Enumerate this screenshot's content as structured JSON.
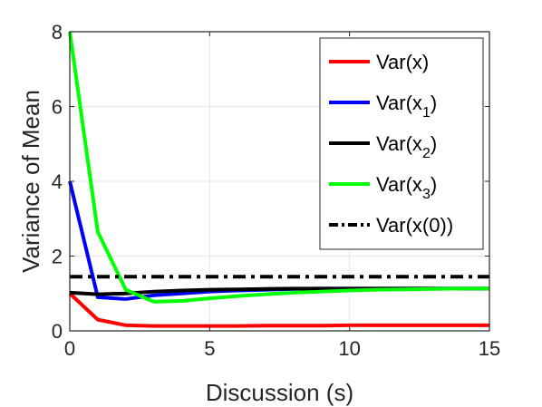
{
  "chart_data": {
    "type": "line",
    "xlabel": "Discussion (s)",
    "ylabel": "Variance of Mean",
    "xlim": [
      0,
      15
    ],
    "ylim": [
      0,
      8
    ],
    "x_ticks": [
      0,
      5,
      10,
      15
    ],
    "y_ticks": [
      0,
      2,
      4,
      6,
      8
    ],
    "x_tick_labels": [
      "0",
      "5",
      "10",
      "15"
    ],
    "y_tick_labels": [
      "0",
      "2",
      "4",
      "6",
      "8"
    ],
    "grid": true,
    "legend_position": "top-right",
    "series": [
      {
        "name": "Var(x)",
        "legend_main": "Var(x)",
        "legend_sub": "",
        "legend_tail": "",
        "color": "#ff0000",
        "dash": "solid",
        "x": [
          0,
          1,
          2,
          3,
          4,
          5,
          6,
          7,
          8,
          9,
          10,
          11,
          12,
          13,
          14,
          15
        ],
        "y": [
          1.0,
          0.3,
          0.15,
          0.13,
          0.13,
          0.13,
          0.13,
          0.14,
          0.14,
          0.14,
          0.15,
          0.15,
          0.15,
          0.15,
          0.15,
          0.15
        ]
      },
      {
        "name": "Var(x1)",
        "legend_main": "Var(x",
        "legend_sub": "1",
        "legend_tail": ")",
        "color": "#0000ff",
        "dash": "solid",
        "x": [
          0,
          1,
          2,
          3,
          4,
          5,
          6,
          7,
          8,
          9,
          10,
          11,
          12,
          13,
          14,
          15
        ],
        "y": [
          4.0,
          0.9,
          0.85,
          0.95,
          1.0,
          1.05,
          1.08,
          1.1,
          1.12,
          1.13,
          1.13,
          1.13,
          1.13,
          1.13,
          1.13,
          1.13
        ]
      },
      {
        "name": "Var(x2)",
        "legend_main": "Var(x",
        "legend_sub": "2",
        "legend_tail": ")",
        "color": "#000000",
        "dash": "solid",
        "x": [
          0,
          1,
          2,
          3,
          4,
          5,
          6,
          7,
          8,
          9,
          10,
          11,
          12,
          13,
          14,
          15
        ],
        "y": [
          1.02,
          0.98,
          1.0,
          1.05,
          1.08,
          1.1,
          1.11,
          1.12,
          1.13,
          1.13,
          1.13,
          1.13,
          1.13,
          1.13,
          1.13,
          1.13
        ]
      },
      {
        "name": "Var(x3)",
        "legend_main": "Var(x",
        "legend_sub": "3",
        "legend_tail": ")",
        "color": "#00ff00",
        "dash": "solid",
        "x": [
          0,
          1,
          2,
          3,
          4,
          5,
          6,
          7,
          8,
          9,
          10,
          11,
          12,
          13,
          14,
          15
        ],
        "y": [
          8.0,
          2.65,
          1.1,
          0.78,
          0.8,
          0.87,
          0.93,
          0.98,
          1.02,
          1.05,
          1.08,
          1.1,
          1.11,
          1.12,
          1.13,
          1.13
        ]
      },
      {
        "name": "Var(x(0))",
        "legend_main": "Var(x(0))",
        "legend_sub": "",
        "legend_tail": "",
        "color": "#000000",
        "dash": "dashdot",
        "x": [
          0,
          15
        ],
        "y": [
          1.45,
          1.45
        ]
      }
    ]
  }
}
